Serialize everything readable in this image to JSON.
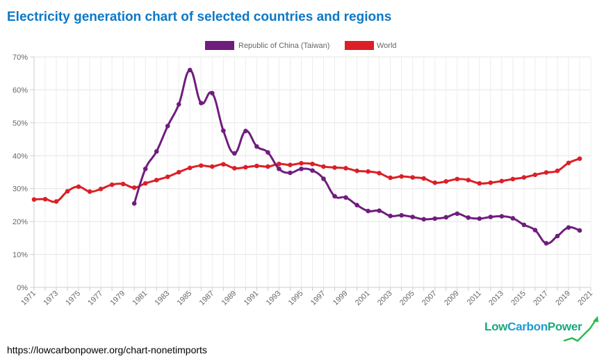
{
  "title": "Electricity generation chart of selected countries and regions",
  "source_url": "https://lowcarbonpower.org/chart-nonetimports",
  "brand": {
    "part1": "Low",
    "part2": "Carbon",
    "part3": "Power",
    "colors": {
      "low": "#1aa87c",
      "carbon": "#1d9bd6"
    }
  },
  "chart_data": {
    "type": "line",
    "title": "Electricity generation chart of selected countries and regions",
    "xlabel": "",
    "ylabel": "",
    "xlim": [
      1971,
      2021
    ],
    "ylim": [
      0,
      70
    ],
    "y_tick_values": [
      0,
      10,
      20,
      30,
      40,
      50,
      60,
      70
    ],
    "y_tick_labels": [
      "0%",
      "10%",
      "20%",
      "30%",
      "40%",
      "50%",
      "60%",
      "70%"
    ],
    "x_tick_labels": [
      "1971",
      "1973",
      "1975",
      "1977",
      "1979",
      "1981",
      "1983",
      "1985",
      "1987",
      "1989",
      "1991",
      "1993",
      "1995",
      "1997",
      "1999",
      "2001",
      "2003",
      "2005",
      "2007",
      "2009",
      "2011",
      "2013",
      "2015",
      "2017",
      "2019",
      "2021"
    ],
    "grid": true,
    "legend_position": "top-center",
    "series": [
      {
        "name": "Republic of China (Taiwan)",
        "color": "#6f1d7d",
        "x": [
          1980,
          1981,
          1982,
          1983,
          1984,
          1985,
          1986,
          1987,
          1988,
          1989,
          1990,
          1991,
          1992,
          1993,
          1994,
          1995,
          1996,
          1997,
          1998,
          1999,
          2000,
          2001,
          2002,
          2003,
          2004,
          2005,
          2006,
          2007,
          2008,
          2009,
          2010,
          2011,
          2012,
          2013,
          2014,
          2015,
          2016,
          2017,
          2018,
          2019,
          2020
        ],
        "y": [
          25.5,
          36.0,
          41.3,
          49.0,
          55.6,
          66.0,
          56.0,
          59.0,
          47.6,
          40.7,
          47.5,
          42.8,
          41.0,
          36.0,
          34.8,
          36.0,
          35.5,
          33.0,
          27.7,
          27.3,
          25.0,
          23.2,
          23.3,
          21.7,
          21.9,
          21.4,
          20.7,
          20.9,
          21.3,
          22.4,
          21.2,
          20.9,
          21.4,
          21.6,
          21.0,
          19.0,
          17.4,
          13.4,
          15.6,
          18.2,
          17.3
        ]
      },
      {
        "name": "World",
        "color": "#dc1f26",
        "x": [
          1971,
          1972,
          1973,
          1974,
          1975,
          1976,
          1977,
          1978,
          1979,
          1980,
          1981,
          1982,
          1983,
          1984,
          1985,
          1986,
          1987,
          1988,
          1989,
          1990,
          1991,
          1992,
          1993,
          1994,
          1995,
          1996,
          1997,
          1998,
          1999,
          2000,
          2001,
          2002,
          2003,
          2004,
          2005,
          2006,
          2007,
          2008,
          2009,
          2010,
          2011,
          2012,
          2013,
          2014,
          2015,
          2016,
          2017,
          2018,
          2019,
          2020
        ],
        "y": [
          26.7,
          26.8,
          26.1,
          29.2,
          30.6,
          29.1,
          29.9,
          31.2,
          31.4,
          30.3,
          31.6,
          32.6,
          33.6,
          35.0,
          36.3,
          37.0,
          36.7,
          37.4,
          36.2,
          36.5,
          36.9,
          36.7,
          37.5,
          37.2,
          37.7,
          37.5,
          36.7,
          36.4,
          36.2,
          35.4,
          35.2,
          34.7,
          33.3,
          33.7,
          33.4,
          33.1,
          31.8,
          32.2,
          32.9,
          32.6,
          31.6,
          31.8,
          32.3,
          32.9,
          33.4,
          34.2,
          34.9,
          35.4,
          37.8,
          39.1
        ]
      }
    ]
  }
}
